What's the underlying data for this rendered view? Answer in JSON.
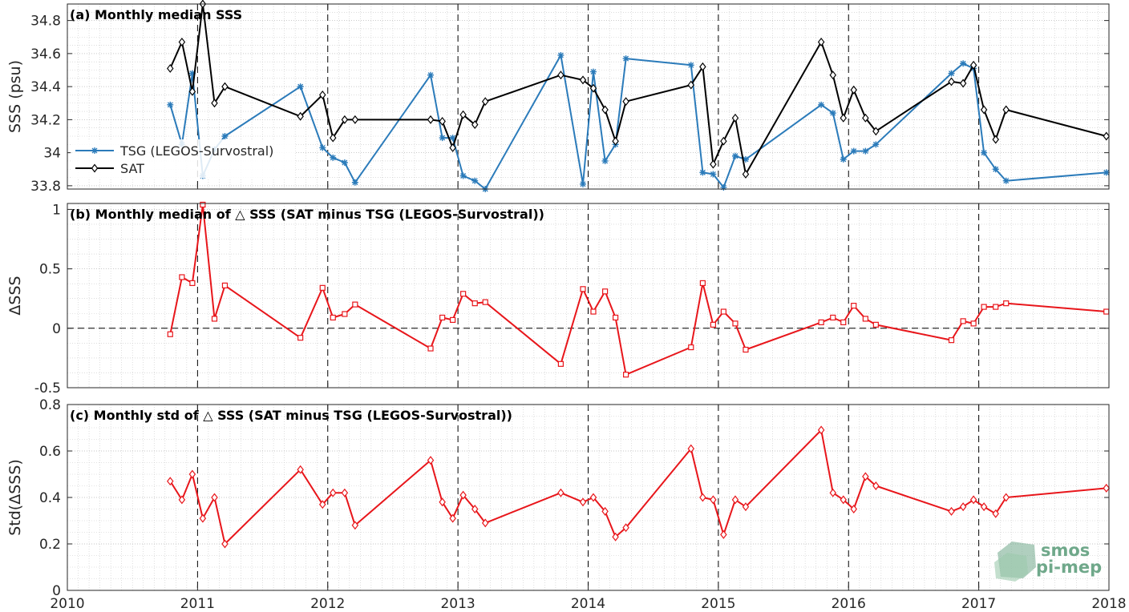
{
  "chart_data": [
    {
      "type": "line",
      "title": "(a) Monthly median SSS",
      "ylabel": "SSS (psu)",
      "xlim": [
        2010,
        2018
      ],
      "ylim": [
        33.78,
        34.9
      ],
      "yticks": [
        33.8,
        34,
        34.2,
        34.4,
        34.6,
        34.8
      ],
      "ytick_labels": [
        "33.8",
        "34",
        "34.2",
        "34.4",
        "34.6",
        "34.8"
      ],
      "grid": true,
      "year_dividers": true,
      "legend_position": "left",
      "series": [
        {
          "name": "TSG (LEGOS-Survostral)",
          "color": "#2b7bba",
          "marker": "star",
          "x": [
            2010.79,
            2010.88,
            2010.96,
            2011.04,
            2011.13,
            2011.21,
            2011.79,
            2011.96,
            2012.04,
            2012.13,
            2012.21,
            2012.79,
            2012.88,
            2012.96,
            2013.04,
            2013.13,
            2013.21,
            2013.79,
            2013.96,
            2014.04,
            2014.13,
            2014.21,
            2014.29,
            2014.79,
            2014.88,
            2014.96,
            2015.04,
            2015.13,
            2015.21,
            2015.79,
            2015.88,
            2015.96,
            2016.04,
            2016.13,
            2016.21,
            2016.79,
            2016.88,
            2016.96,
            2017.04,
            2017.13,
            2017.21,
            2017.98
          ],
          "y": [
            34.29,
            34.05,
            34.48,
            33.86,
            34.02,
            34.1,
            34.4,
            34.03,
            33.97,
            33.94,
            33.82,
            34.47,
            34.09,
            34.09,
            33.86,
            33.83,
            33.78,
            34.59,
            33.81,
            34.49,
            33.95,
            34.05,
            34.57,
            34.53,
            33.88,
            33.87,
            33.79,
            33.98,
            33.96,
            34.29,
            34.24,
            33.96,
            34.01,
            34.01,
            34.05,
            34.48,
            34.54,
            34.51,
            34.0,
            33.9,
            33.83,
            33.88
          ]
        },
        {
          "name": "SAT",
          "color": "#000000",
          "marker": "diamond",
          "x": [
            2010.79,
            2010.88,
            2010.96,
            2011.04,
            2011.13,
            2011.21,
            2011.79,
            2011.96,
            2012.04,
            2012.13,
            2012.21,
            2012.79,
            2012.88,
            2012.96,
            2013.04,
            2013.13,
            2013.21,
            2013.79,
            2013.96,
            2014.04,
            2014.13,
            2014.21,
            2014.29,
            2014.79,
            2014.88,
            2014.96,
            2015.04,
            2015.13,
            2015.21,
            2015.79,
            2015.88,
            2015.96,
            2016.04,
            2016.13,
            2016.21,
            2016.79,
            2016.88,
            2016.96,
            2017.04,
            2017.13,
            2017.21,
            2017.98
          ],
          "y": [
            34.51,
            34.67,
            34.37,
            34.9,
            34.3,
            34.4,
            34.22,
            34.35,
            34.09,
            34.2,
            34.2,
            34.2,
            34.19,
            34.03,
            34.23,
            34.17,
            34.31,
            34.47,
            34.44,
            34.39,
            34.26,
            34.07,
            34.31,
            34.41,
            34.52,
            33.93,
            34.07,
            34.21,
            33.87,
            34.67,
            34.47,
            34.21,
            34.38,
            34.21,
            34.13,
            34.43,
            34.42,
            34.53,
            34.26,
            34.08,
            34.26,
            34.1
          ]
        }
      ]
    },
    {
      "type": "line",
      "title": "(b) Monthly median of △ SSS (SAT minus TSG (LEGOS-Survostral))",
      "ylabel": "ΔSSS",
      "xlim": [
        2010,
        2018
      ],
      "ylim": [
        -0.5,
        1.05
      ],
      "yticks": [
        -0.5,
        0,
        0.5,
        1
      ],
      "ytick_labels": [
        "-0.5",
        "0",
        "0.5",
        "1"
      ],
      "zero_line": true,
      "series": [
        {
          "color": "#e8161b",
          "marker": "square",
          "x": [
            2010.79,
            2010.88,
            2010.96,
            2011.04,
            2011.13,
            2011.21,
            2011.79,
            2011.96,
            2012.04,
            2012.13,
            2012.21,
            2012.79,
            2012.88,
            2012.96,
            2013.04,
            2013.13,
            2013.21,
            2013.79,
            2013.96,
            2014.04,
            2014.13,
            2014.21,
            2014.29,
            2014.79,
            2014.88,
            2014.96,
            2015.04,
            2015.13,
            2015.21,
            2015.79,
            2015.88,
            2015.96,
            2016.04,
            2016.13,
            2016.21,
            2016.79,
            2016.88,
            2016.96,
            2017.04,
            2017.13,
            2017.21,
            2017.98
          ],
          "y": [
            -0.05,
            0.43,
            0.38,
            1.04,
            0.08,
            0.36,
            -0.08,
            0.34,
            0.09,
            0.12,
            0.2,
            -0.17,
            0.09,
            0.07,
            0.29,
            0.21,
            0.22,
            -0.3,
            0.33,
            0.14,
            0.31,
            0.09,
            -0.39,
            -0.16,
            0.38,
            0.03,
            0.14,
            0.04,
            -0.18,
            0.05,
            0.09,
            0.05,
            0.19,
            0.08,
            0.03,
            -0.1,
            0.06,
            0.04,
            0.18,
            0.18,
            0.21,
            0.14
          ]
        }
      ]
    },
    {
      "type": "line",
      "title": "(c) Monthly std of △ SSS (SAT minus TSG (LEGOS-Survostral))",
      "ylabel": "Std(ΔSSS)",
      "xlim": [
        2010,
        2018
      ],
      "ylim": [
        0,
        0.8
      ],
      "yticks": [
        0,
        0.2,
        0.4,
        0.6,
        0.8
      ],
      "ytick_labels": [
        "0",
        "0.2",
        "0.4",
        "0.6",
        "0.8"
      ],
      "xticks": [
        2010,
        2011,
        2012,
        2013,
        2014,
        2015,
        2016,
        2017,
        2018
      ],
      "xtick_labels": [
        "2010",
        "2011",
        "2012",
        "2013",
        "2014",
        "2015",
        "2016",
        "2017",
        "2018"
      ],
      "series": [
        {
          "color": "#e8161b",
          "marker": "diamond",
          "x": [
            2010.79,
            2010.88,
            2010.96,
            2011.04,
            2011.13,
            2011.21,
            2011.79,
            2011.96,
            2012.04,
            2012.13,
            2012.21,
            2012.79,
            2012.88,
            2012.96,
            2013.04,
            2013.13,
            2013.21,
            2013.79,
            2013.96,
            2014.04,
            2014.13,
            2014.21,
            2014.29,
            2014.79,
            2014.88,
            2014.96,
            2015.04,
            2015.13,
            2015.21,
            2015.79,
            2015.88,
            2015.96,
            2016.04,
            2016.13,
            2016.21,
            2016.79,
            2016.88,
            2016.96,
            2017.04,
            2017.13,
            2017.21,
            2017.98
          ],
          "y": [
            0.47,
            0.39,
            0.5,
            0.31,
            0.4,
            0.2,
            0.52,
            0.37,
            0.42,
            0.42,
            0.28,
            0.56,
            0.38,
            0.31,
            0.41,
            0.35,
            0.29,
            0.42,
            0.38,
            0.4,
            0.34,
            0.23,
            0.27,
            0.61,
            0.4,
            0.39,
            0.24,
            0.39,
            0.36,
            0.69,
            0.42,
            0.39,
            0.35,
            0.49,
            0.45,
            0.34,
            0.36,
            0.39,
            0.36,
            0.33,
            0.4,
            0.44
          ]
        }
      ]
    }
  ],
  "logo": {
    "line1": "smos",
    "line2": "pi-mep",
    "color": "#6fa88a"
  }
}
